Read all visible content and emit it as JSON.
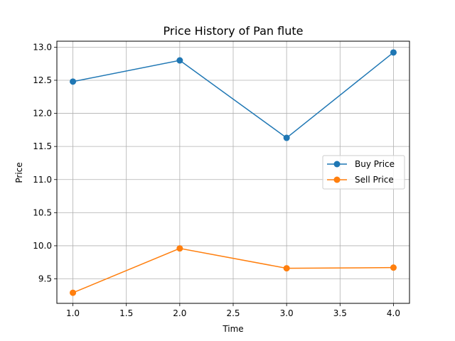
{
  "chart_data": {
    "type": "line",
    "title": "Price History of Pan flute",
    "xlabel": "Time",
    "ylabel": "Price",
    "xlim": [
      0.85,
      4.15
    ],
    "ylim": [
      9.13,
      13.09
    ],
    "xticks": [
      "1.0",
      "1.5",
      "2.0",
      "2.5",
      "3.0",
      "3.5",
      "4.0"
    ],
    "yticks": [
      "9.5",
      "10.0",
      "10.5",
      "11.0",
      "11.5",
      "12.0",
      "12.5",
      "13.0"
    ],
    "grid": true,
    "legend_position": "center-right",
    "x": [
      1,
      2,
      3,
      4
    ],
    "series": [
      {
        "name": "Buy Price",
        "color": "#1f77b4",
        "values": [
          12.48,
          12.8,
          11.63,
          12.92
        ]
      },
      {
        "name": "Sell Price",
        "color": "#ff7f0e",
        "values": [
          9.29,
          9.96,
          9.66,
          9.67
        ]
      }
    ]
  }
}
